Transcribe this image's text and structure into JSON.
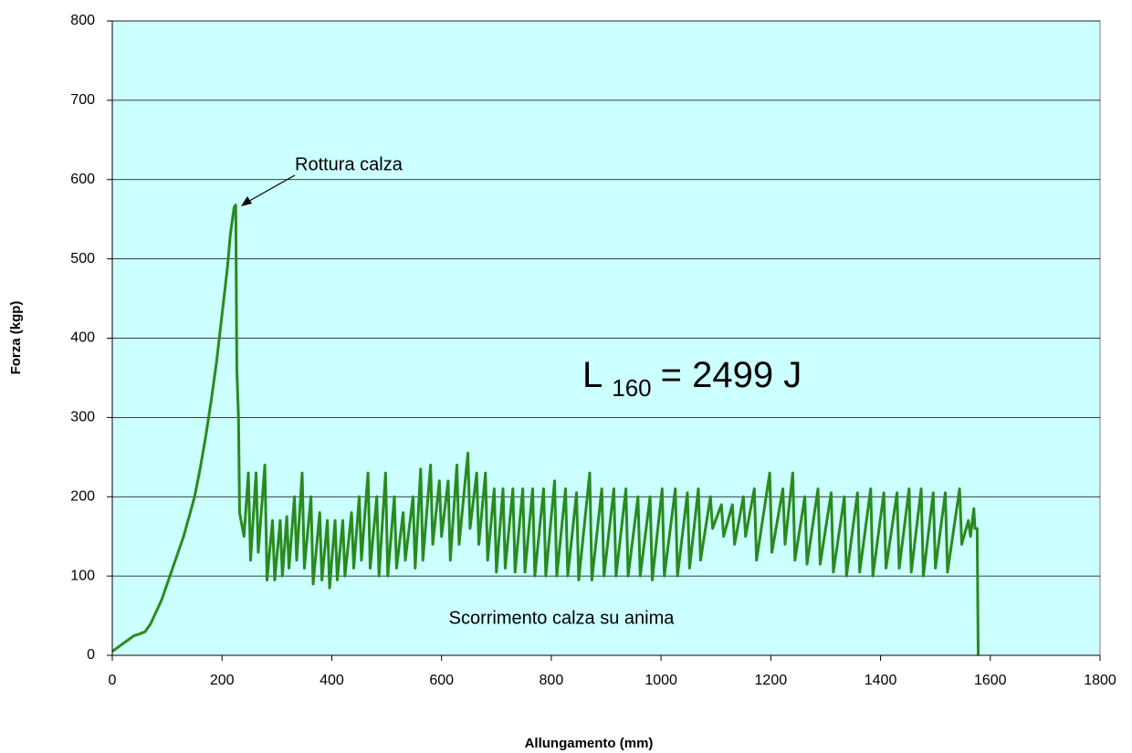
{
  "chart_data": {
    "type": "line",
    "xlabel": "Allungamento (mm)",
    "ylabel": "Forza (kgp)",
    "annotations": [
      {
        "text": "Rottura calza"
      },
      {
        "text": "Scorrimento calza su anima"
      }
    ],
    "formula": {
      "base": "L",
      "subscript": "160",
      "rest": "= 2499 J"
    },
    "xlim": [
      0,
      1800
    ],
    "xticks": [
      0,
      200,
      400,
      600,
      800,
      1000,
      1200,
      1400,
      1600,
      1800
    ],
    "ylim": [
      0,
      800
    ],
    "yticks": [
      0,
      100,
      200,
      300,
      400,
      500,
      600,
      700,
      800
    ],
    "grid": true,
    "background": "#ccffff",
    "series": [
      {
        "color": "#2a8a1f",
        "x": [
          0,
          10,
          20,
          30,
          40,
          50,
          60,
          70,
          80,
          90,
          100,
          110,
          120,
          130,
          140,
          150,
          160,
          170,
          180,
          190,
          200,
          210,
          215,
          220,
          222,
          225,
          227,
          230,
          232,
          240,
          248,
          252,
          262,
          266,
          278,
          282,
          292,
          296,
          306,
          310,
          318,
          322,
          332,
          336,
          346,
          350,
          362,
          366,
          378,
          382,
          392,
          396,
          406,
          410,
          420,
          424,
          436,
          440,
          450,
          454,
          466,
          470,
          482,
          486,
          498,
          502,
          514,
          518,
          530,
          534,
          548,
          552,
          562,
          566,
          580,
          584,
          596,
          600,
          612,
          616,
          628,
          632,
          648,
          652,
          664,
          668,
          680,
          684,
          696,
          700,
          712,
          716,
          730,
          734,
          748,
          752,
          766,
          770,
          786,
          790,
          806,
          810,
          826,
          830,
          846,
          850,
          870,
          874,
          892,
          896,
          914,
          918,
          936,
          940,
          958,
          962,
          980,
          984,
          1002,
          1006,
          1026,
          1030,
          1048,
          1052,
          1068,
          1072,
          1090,
          1094,
          1110,
          1114,
          1130,
          1134,
          1150,
          1154,
          1170,
          1174,
          1198,
          1202,
          1222,
          1226,
          1240,
          1244,
          1262,
          1266,
          1286,
          1290,
          1310,
          1314,
          1334,
          1338,
          1358,
          1362,
          1382,
          1386,
          1406,
          1410,
          1430,
          1434,
          1452,
          1456,
          1474,
          1478,
          1496,
          1500,
          1518,
          1522,
          1544,
          1548,
          1560,
          1564,
          1570,
          1572,
          1576,
          1578
        ],
        "values": [
          5,
          10,
          15,
          20,
          25,
          27,
          30,
          40,
          55,
          70,
          90,
          110,
          130,
          150,
          175,
          200,
          235,
          275,
          320,
          370,
          430,
          490,
          530,
          555,
          565,
          568,
          360,
          300,
          180,
          150,
          230,
          120,
          230,
          130,
          240,
          95,
          170,
          95,
          170,
          100,
          175,
          110,
          200,
          120,
          230,
          110,
          200,
          90,
          180,
          95,
          170,
          85,
          170,
          95,
          170,
          100,
          180,
          110,
          200,
          120,
          230,
          110,
          200,
          100,
          230,
          100,
          200,
          110,
          180,
          120,
          200,
          110,
          235,
          120,
          240,
          140,
          220,
          150,
          220,
          120,
          240,
          140,
          255,
          160,
          230,
          140,
          230,
          120,
          210,
          105,
          210,
          110,
          210,
          105,
          210,
          105,
          210,
          100,
          210,
          100,
          220,
          100,
          210,
          100,
          205,
          95,
          230,
          95,
          210,
          100,
          210,
          100,
          210,
          100,
          200,
          100,
          200,
          95,
          210,
          100,
          210,
          100,
          205,
          110,
          210,
          120,
          200,
          160,
          190,
          150,
          190,
          140,
          200,
          150,
          210,
          120,
          230,
          130,
          210,
          140,
          230,
          120,
          200,
          115,
          210,
          115,
          205,
          105,
          200,
          100,
          205,
          105,
          210,
          100,
          205,
          110,
          205,
          110,
          210,
          105,
          210,
          100,
          205,
          110,
          205,
          105,
          210,
          140,
          170,
          150,
          185,
          160,
          160,
          0
        ]
      }
    ]
  }
}
